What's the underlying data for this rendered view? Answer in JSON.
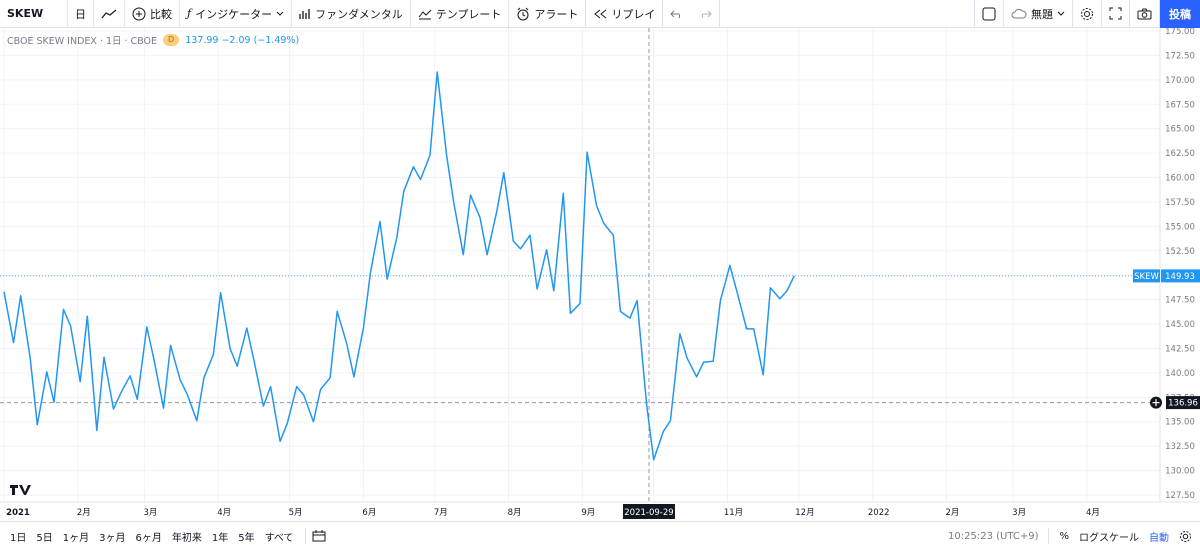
{
  "toolbar": {
    "symbol": "SKEW",
    "interval": "日",
    "compare": "比較",
    "indicators": "インジケーター",
    "fundamentals": "ファンダメンタル",
    "templates": "テンプレート",
    "alert": "アラート",
    "replay": "リプレイ",
    "layout_name": "無題",
    "post": "投稿"
  },
  "legend": {
    "title": "CBOE SKEW INDEX · 1日 · CBOE",
    "badge": "D",
    "values": "137.99 −2.09 (−1.49%)"
  },
  "bottom": {
    "ranges": [
      "1日",
      "5日",
      "1ヶ月",
      "3ヶ月",
      "6ヶ月",
      "年初来",
      "1年",
      "5年",
      "すべて"
    ],
    "time": "10:25:23 (UTC+9)",
    "percent": "%",
    "log": "ログスケール",
    "auto": "自動"
  },
  "colors": {
    "line": "#2196f3",
    "accent": "#2962ff",
    "grid": "#f0f3fa"
  },
  "chart_data": {
    "type": "line",
    "series": [
      {
        "name": "SKEW",
        "x": [
          "2021-01-01",
          "2021-01-05",
          "2021-01-08",
          "2021-01-12",
          "2021-01-15",
          "2021-01-19",
          "2021-01-22",
          "2021-01-26",
          "2021-01-29",
          "2021-02-02",
          "2021-02-05",
          "2021-02-09",
          "2021-02-12",
          "2021-02-16",
          "2021-02-19",
          "2021-02-23",
          "2021-02-26",
          "2021-03-02",
          "2021-03-05",
          "2021-03-09",
          "2021-03-12",
          "2021-03-16",
          "2021-03-19",
          "2021-03-23",
          "2021-03-26",
          "2021-03-30",
          "2021-04-02",
          "2021-04-06",
          "2021-04-09",
          "2021-04-13",
          "2021-04-16",
          "2021-04-20",
          "2021-04-23",
          "2021-04-27",
          "2021-04-30",
          "2021-05-04",
          "2021-05-07",
          "2021-05-11",
          "2021-05-14",
          "2021-05-18",
          "2021-05-21",
          "2021-05-25",
          "2021-05-28",
          "2021-06-01",
          "2021-06-04",
          "2021-06-08",
          "2021-06-11",
          "2021-06-15",
          "2021-06-18",
          "2021-06-22",
          "2021-06-25",
          "2021-06-29",
          "2021-07-02",
          "2021-07-06",
          "2021-07-09",
          "2021-07-13",
          "2021-07-16",
          "2021-07-20",
          "2021-07-23",
          "2021-07-27",
          "2021-07-30",
          "2021-08-03",
          "2021-08-06",
          "2021-08-10",
          "2021-08-13",
          "2021-08-17",
          "2021-08-20",
          "2021-08-24",
          "2021-08-27",
          "2021-08-31",
          "2021-09-03",
          "2021-09-07",
          "2021-09-10",
          "2021-09-14",
          "2021-09-17",
          "2021-09-21",
          "2021-09-24",
          "2021-09-28",
          "2021-10-01",
          "2021-10-05",
          "2021-10-08",
          "2021-10-12",
          "2021-10-15",
          "2021-10-19",
          "2021-10-22",
          "2021-10-26",
          "2021-10-29",
          "2021-11-02",
          "2021-11-05",
          "2021-11-09",
          "2021-11-12",
          "2021-11-16",
          "2021-11-19",
          "2021-11-23",
          "2021-11-26",
          "2021-11-29"
        ],
        "values": [
          148.3,
          143.1,
          147.9,
          141.5,
          134.7,
          140.1,
          137.0,
          146.5,
          144.8,
          139.1,
          145.8,
          134.1,
          141.6,
          136.3,
          137.9,
          139.7,
          137.3,
          144.7,
          141.4,
          136.4,
          142.8,
          139.3,
          137.8,
          135.1,
          139.5,
          141.9,
          148.2,
          142.5,
          140.7,
          144.6,
          141.3,
          136.6,
          138.6,
          133.0,
          134.8,
          138.6,
          137.7,
          135.0,
          138.3,
          139.5,
          146.3,
          143.0,
          139.6,
          144.6,
          150.3,
          155.5,
          149.6,
          153.8,
          158.6,
          161.1,
          159.8,
          162.3,
          170.8,
          162.2,
          157.4,
          152.1,
          158.2,
          155.9,
          152.1,
          156.5,
          160.5,
          153.5,
          152.7,
          154.1,
          148.6,
          152.6,
          148.4,
          158.4,
          146.1,
          147.1,
          162.6,
          157.1,
          155.3,
          154.1,
          146.3,
          145.6,
          147.4,
          136.8,
          131.1,
          134.0,
          135.1,
          144.0,
          141.5,
          139.6,
          141.1,
          141.2,
          147.4,
          151.0,
          148.3,
          144.5,
          144.5,
          139.8,
          148.7,
          147.6,
          148.4,
          149.93
        ]
      }
    ],
    "x_ticks": [
      "2021",
      "2月",
      "3月",
      "4月",
      "5月",
      "6月",
      "7月",
      "8月",
      "9月",
      "10月",
      "11月",
      "12月",
      "2022",
      "2月",
      "3月",
      "4月"
    ],
    "crosshair_date": "2021-09-29",
    "y_ticks": [
      "175.00",
      "172.50",
      "170.00",
      "167.50",
      "165.00",
      "162.50",
      "160.00",
      "157.50",
      "155.00",
      "152.50",
      "150.00",
      "147.50",
      "145.00",
      "142.50",
      "140.00",
      "137.50",
      "135.00",
      "132.50",
      "130.00",
      "127.50"
    ],
    "ylim": [
      127.5,
      175.0
    ],
    "last_label": {
      "name": "SKEW",
      "value": "149.93"
    },
    "crosshair_value": "136.96",
    "grid": true
  }
}
